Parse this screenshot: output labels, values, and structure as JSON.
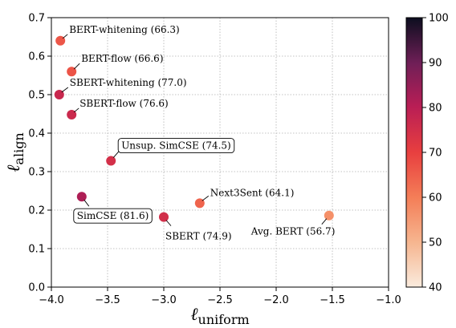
{
  "chart_data": {
    "type": "scatter",
    "title": "",
    "xlabel": "ℓ",
    "xlabel_sub": "uniform",
    "ylabel": "ℓ",
    "ylabel_sub": "align",
    "xlim": [
      -4.0,
      -1.0
    ],
    "ylim": [
      0.0,
      0.7
    ],
    "xticks": [
      "−4.0",
      "−3.5",
      "−3.0",
      "−2.5",
      "−2.0",
      "−1.5",
      "−1.0"
    ],
    "yticks": [
      "0.0",
      "0.1",
      "0.2",
      "0.3",
      "0.4",
      "0.5",
      "0.6",
      "0.7"
    ],
    "grid": true,
    "colorbar": {
      "range": [
        40,
        100
      ],
      "ticks": [
        "40",
        "50",
        "60",
        "70",
        "80",
        "90",
        "100"
      ],
      "colormap": "rocket_r"
    },
    "points": [
      {
        "label": "BERT-whitening (66.3)",
        "x": -3.92,
        "y": 0.64,
        "c": 66.3,
        "boxed": false
      },
      {
        "label": "BERT-flow (66.6)",
        "x": -3.82,
        "y": 0.56,
        "c": 66.6,
        "boxed": false
      },
      {
        "label": "SBERT-whitening (77.0)",
        "x": -3.93,
        "y": 0.5,
        "c": 77.0,
        "boxed": false
      },
      {
        "label": "SBERT-flow (76.6)",
        "x": -3.82,
        "y": 0.448,
        "c": 76.6,
        "boxed": false
      },
      {
        "label": "Unsup. SimCSE (74.5)",
        "x": -3.47,
        "y": 0.328,
        "c": 74.5,
        "boxed": true
      },
      {
        "label": "SimCSE (81.6)",
        "x": -3.73,
        "y": 0.235,
        "c": 81.6,
        "boxed": true
      },
      {
        "label": "Next3Sent (64.1)",
        "x": -2.68,
        "y": 0.218,
        "c": 64.1,
        "boxed": false
      },
      {
        "label": "SBERT (74.9)",
        "x": -3.0,
        "y": 0.182,
        "c": 74.9,
        "boxed": false
      },
      {
        "label": "Avg. BERT (56.7)",
        "x": -1.53,
        "y": 0.186,
        "c": 56.7,
        "boxed": false
      }
    ]
  }
}
